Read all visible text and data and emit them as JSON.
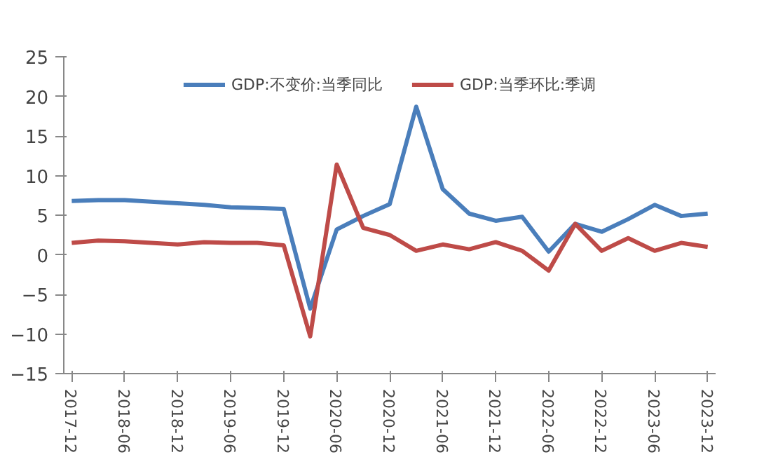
{
  "chart_data": {
    "type": "line",
    "categories": [
      "2017-12",
      null,
      "2018-06",
      null,
      "2018-12",
      null,
      "2019-06",
      null,
      "2019-12",
      null,
      "2020-06",
      null,
      "2020-12",
      null,
      "2021-06",
      null,
      "2021-12",
      null,
      "2022-06",
      null,
      "2022-12",
      null,
      "2023-06",
      null,
      "2023-12"
    ],
    "series": [
      {
        "name": "GDP:不变价:当季同比",
        "color": "#4a7ebb",
        "values": [
          6.8,
          6.9,
          6.9,
          6.7,
          6.5,
          6.3,
          6.0,
          5.9,
          5.8,
          -6.8,
          3.2,
          4.9,
          6.4,
          18.7,
          8.3,
          5.2,
          4.3,
          4.8,
          0.4,
          3.9,
          2.9,
          4.5,
          6.3,
          4.9,
          5.2
        ]
      },
      {
        "name": "GDP:当季环比:季调",
        "color": "#be4b48",
        "values": [
          1.5,
          1.8,
          1.7,
          1.5,
          1.3,
          1.6,
          1.5,
          1.5,
          1.2,
          -10.3,
          11.4,
          3.4,
          2.5,
          0.5,
          1.3,
          0.7,
          1.6,
          0.5,
          -2.0,
          3.9,
          0.5,
          2.1,
          0.5,
          1.5,
          1.0
        ]
      }
    ],
    "ylim": [
      -15,
      25
    ],
    "yticks": [
      -15,
      -10,
      -5,
      0,
      5,
      10,
      15,
      20,
      25
    ],
    "grid": false,
    "legend": "top",
    "marker": "none",
    "line_style": "solid"
  }
}
